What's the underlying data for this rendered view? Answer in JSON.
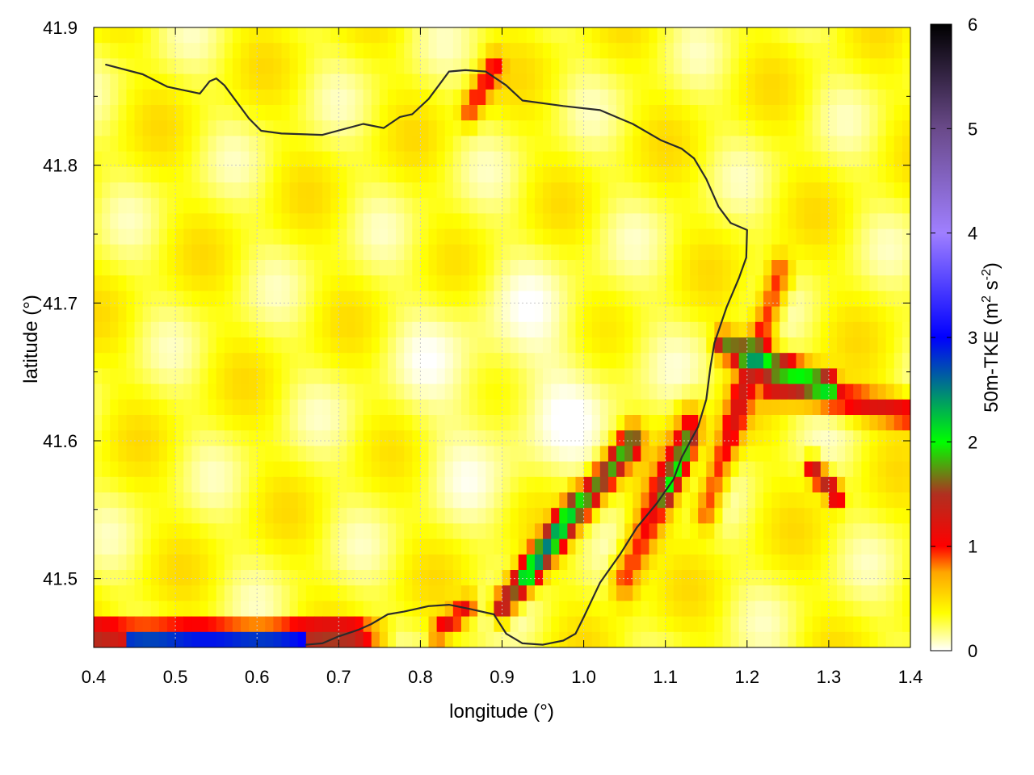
{
  "chart_data": {
    "type": "heatmap",
    "title": "",
    "xlabel": "longitude (°)",
    "ylabel": "latitude (°)",
    "colorbar_label": "50m-TKE (m² s⁻²)",
    "colorbar_label_parts": {
      "main": "50m-TKE (m",
      "exp1": "2",
      "mid": " s",
      "exp2": "-2",
      "end": ")"
    },
    "xlim": [
      0.4,
      1.4
    ],
    "ylim": [
      41.45,
      41.9
    ],
    "zlim": [
      0,
      6
    ],
    "x_ticks": [
      0.4,
      0.5,
      0.6,
      0.7,
      0.8,
      0.9,
      1.0,
      1.1,
      1.2,
      1.3,
      1.4
    ],
    "x_tick_labels": [
      "0.4",
      "0.5",
      "0.6",
      "0.7",
      "0.8",
      "0.9",
      "1.0",
      "1.1",
      "1.2",
      "1.3",
      "1.4"
    ],
    "y_ticks": [
      41.5,
      41.6,
      41.7,
      41.8,
      41.9
    ],
    "y_tick_labels": [
      "41.5",
      "41.6",
      "41.7",
      "41.8",
      "41.9"
    ],
    "colorbar_ticks": [
      0,
      1,
      2,
      3,
      4,
      5,
      6
    ],
    "colorbar_tick_labels": [
      "0",
      "1",
      "2",
      "3",
      "4",
      "5",
      "6"
    ],
    "colorscale": [
      {
        "value": 0.0,
        "color": "#ffffff"
      },
      {
        "value": 0.35,
        "color": "#ffff00"
      },
      {
        "value": 0.75,
        "color": "#ffa500"
      },
      {
        "value": 1.0,
        "color": "#ff0000"
      },
      {
        "value": 1.5,
        "color": "#b03020"
      },
      {
        "value": 2.0,
        "color": "#00ff00"
      },
      {
        "value": 2.5,
        "color": "#008080"
      },
      {
        "value": 3.0,
        "color": "#0000ff"
      },
      {
        "value": 4.0,
        "color": "#9f7fff"
      },
      {
        "value": 5.0,
        "color": "#6a4a8a"
      },
      {
        "value": 6.0,
        "color": "#000000"
      }
    ],
    "grid": true,
    "contour_lines": [
      [
        [
          0.415,
          41.873
        ],
        [
          0.46,
          41.866
        ],
        [
          0.49,
          41.857
        ],
        [
          0.53,
          41.852
        ],
        [
          0.542,
          41.861
        ],
        [
          0.55,
          41.863
        ],
        [
          0.56,
          41.858
        ],
        [
          0.59,
          41.834
        ],
        [
          0.605,
          41.825
        ],
        [
          0.63,
          41.823
        ],
        [
          0.68,
          41.822
        ],
        [
          0.73,
          41.83
        ],
        [
          0.755,
          41.827
        ],
        [
          0.775,
          41.835
        ],
        [
          0.79,
          41.837
        ],
        [
          0.81,
          41.848
        ],
        [
          0.825,
          41.86
        ],
        [
          0.835,
          41.868
        ],
        [
          0.855,
          41.869
        ],
        [
          0.88,
          41.868
        ],
        [
          0.905,
          41.858
        ],
        [
          0.925,
          41.847
        ],
        [
          0.975,
          41.843
        ],
        [
          1.02,
          41.84
        ],
        [
          1.06,
          41.83
        ],
        [
          1.095,
          41.818
        ],
        [
          1.12,
          41.812
        ],
        [
          1.135,
          41.805
        ],
        [
          1.15,
          41.79
        ],
        [
          1.165,
          41.77
        ],
        [
          1.18,
          41.758
        ],
        [
          1.2,
          41.753
        ],
        [
          1.199,
          41.733
        ],
        [
          1.19,
          41.718
        ],
        [
          1.175,
          41.697
        ],
        [
          1.16,
          41.671
        ],
        [
          1.155,
          41.653
        ],
        [
          1.15,
          41.63
        ],
        [
          1.14,
          41.61
        ],
        [
          1.12,
          41.588
        ],
        [
          1.11,
          41.572
        ],
        [
          1.09,
          41.555
        ],
        [
          1.065,
          41.537
        ],
        [
          1.045,
          41.518
        ],
        [
          1.02,
          41.497
        ],
        [
          1.0,
          41.472
        ],
        [
          0.99,
          41.46
        ],
        [
          0.975,
          41.455
        ],
        [
          0.95,
          41.452
        ],
        [
          0.925,
          41.453
        ],
        [
          0.905,
          41.46
        ],
        [
          0.89,
          41.474
        ],
        [
          0.86,
          41.478
        ],
        [
          0.835,
          41.481
        ],
        [
          0.81,
          41.48
        ],
        [
          0.78,
          41.476
        ],
        [
          0.76,
          41.474
        ],
        [
          0.74,
          41.467
        ],
        [
          0.725,
          41.463
        ],
        [
          0.7,
          41.458
        ],
        [
          0.68,
          41.453
        ],
        [
          0.66,
          41.452
        ]
      ]
    ],
    "rows": 40,
    "cols": 100
  }
}
